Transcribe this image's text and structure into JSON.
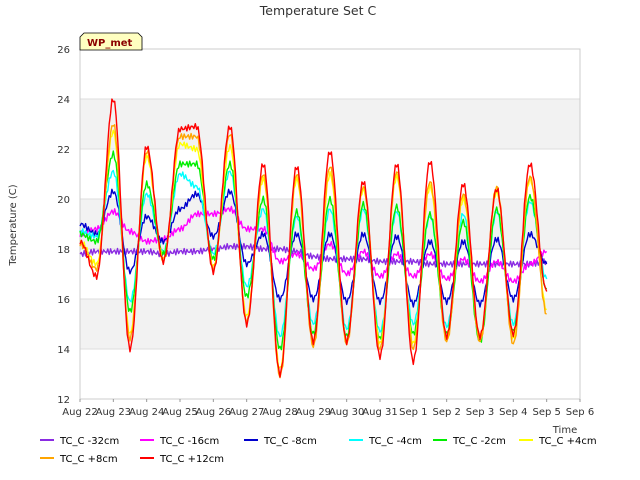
{
  "chart_data": {
    "type": "line",
    "title": "Temperature Set C",
    "xlabel": "Time",
    "ylabel": "Temperature (C)",
    "badge": "WP_met",
    "ylim": [
      12,
      26
    ],
    "yticks": [
      12,
      14,
      16,
      18,
      20,
      22,
      24,
      26
    ],
    "xticks": [
      "Aug 22",
      "Aug 23",
      "Aug 24",
      "Aug 25",
      "Aug 26",
      "Aug 27",
      "Aug 28",
      "Aug 29",
      "Aug 30",
      "Aug 31",
      "Sep 1",
      "Sep 2",
      "Sep 3",
      "Sep 4",
      "Sep 5",
      "Sep 6"
    ],
    "x_days": [
      0.0,
      0.5,
      1.0,
      1.5,
      2.0,
      2.5,
      3.0,
      3.5,
      4.0,
      4.5,
      5.0,
      5.5,
      6.0,
      6.5,
      7.0,
      7.5,
      8.0,
      8.5,
      9.0,
      9.5,
      10.0,
      10.5,
      11.0,
      11.5,
      12.0,
      12.5,
      13.0,
      13.5,
      14.0
    ],
    "grid": "horizontal bands",
    "legend": "bottom",
    "series": [
      {
        "name": "TC_C -32cm",
        "color": "#8a2be2",
        "values": [
          17.8,
          17.9,
          17.9,
          17.9,
          17.9,
          17.8,
          17.9,
          17.9,
          18.0,
          18.1,
          18.1,
          18.0,
          18.0,
          17.9,
          17.7,
          17.6,
          17.6,
          17.6,
          17.5,
          17.5,
          17.5,
          17.4,
          17.4,
          17.4,
          17.4,
          17.4,
          17.4,
          17.4,
          17.5
        ]
      },
      {
        "name": "TC_C -16cm",
        "color": "#ff00ff",
        "values": [
          18.6,
          18.8,
          19.5,
          18.7,
          18.3,
          18.4,
          18.8,
          19.4,
          19.4,
          19.6,
          18.8,
          18.8,
          17.5,
          17.8,
          17.2,
          18.2,
          17.0,
          17.9,
          16.9,
          17.8,
          16.9,
          17.8,
          16.8,
          17.6,
          16.7,
          17.5,
          16.7,
          17.4,
          17.9
        ]
      },
      {
        "name": "TC_C -8cm",
        "color": "#0000cd",
        "values": [
          19.0,
          18.6,
          20.3,
          17.1,
          19.3,
          18.3,
          19.6,
          20.2,
          18.5,
          20.3,
          17.4,
          18.6,
          16.0,
          18.6,
          16.0,
          18.6,
          15.9,
          18.6,
          15.9,
          18.5,
          15.8,
          18.3,
          15.9,
          18.3,
          15.8,
          18.4,
          16.0,
          18.6,
          17.4
        ]
      },
      {
        "name": "TC_C -4cm",
        "color": "#00ffff",
        "values": [
          18.7,
          18.5,
          21.1,
          15.9,
          20.2,
          17.9,
          21.0,
          20.5,
          17.8,
          21.1,
          16.5,
          19.6,
          14.5,
          19.3,
          15.0,
          19.6,
          14.8,
          19.6,
          14.7,
          19.5,
          15.0,
          19.3,
          14.9,
          19.4,
          14.5,
          19.5,
          15.0,
          19.9,
          16.8
        ]
      },
      {
        "name": "TC_C -2cm",
        "color": "#00ee00",
        "values": [
          18.6,
          18.3,
          21.8,
          15.5,
          20.6,
          17.8,
          21.4,
          21.4,
          17.6,
          21.4,
          16.1,
          20.0,
          14.0,
          19.5,
          14.6,
          20.0,
          14.5,
          19.8,
          14.4,
          19.7,
          14.6,
          19.4,
          14.6,
          19.1,
          14.3,
          19.6,
          14.7,
          20.1,
          16.4
        ]
      },
      {
        "name": "TC_C +4cm",
        "color": "#ffff00",
        "values": [
          18.3,
          17.4,
          22.7,
          14.6,
          21.7,
          17.6,
          22.2,
          22.0,
          17.3,
          22.1,
          15.3,
          20.8,
          13.2,
          20.8,
          14.3,
          21.0,
          14.3,
          20.4,
          14.2,
          20.9,
          14.2,
          20.5,
          14.4,
          20.0,
          14.5,
          20.3,
          14.4,
          20.8,
          15.6
        ]
      },
      {
        "name": "TC_C +8cm",
        "color": "#ffa500",
        "values": [
          18.2,
          17.2,
          23.0,
          14.4,
          21.9,
          17.5,
          22.5,
          22.5,
          17.2,
          22.6,
          15.1,
          21.0,
          12.9,
          21.0,
          14.1,
          21.3,
          14.2,
          20.5,
          14.0,
          21.1,
          14.0,
          20.7,
          14.3,
          20.2,
          14.3,
          20.5,
          14.2,
          20.9,
          15.4
        ]
      },
      {
        "name": "TC_C +12cm",
        "color": "#ff0000",
        "values": [
          18.3,
          16.9,
          24.0,
          14.0,
          22.1,
          17.5,
          22.8,
          22.9,
          17.1,
          22.9,
          15.0,
          21.4,
          13.0,
          21.3,
          14.3,
          21.9,
          14.3,
          20.7,
          13.7,
          21.4,
          13.5,
          21.5,
          14.5,
          20.6,
          14.5,
          20.4,
          14.6,
          21.4,
          16.3
        ]
      }
    ]
  }
}
